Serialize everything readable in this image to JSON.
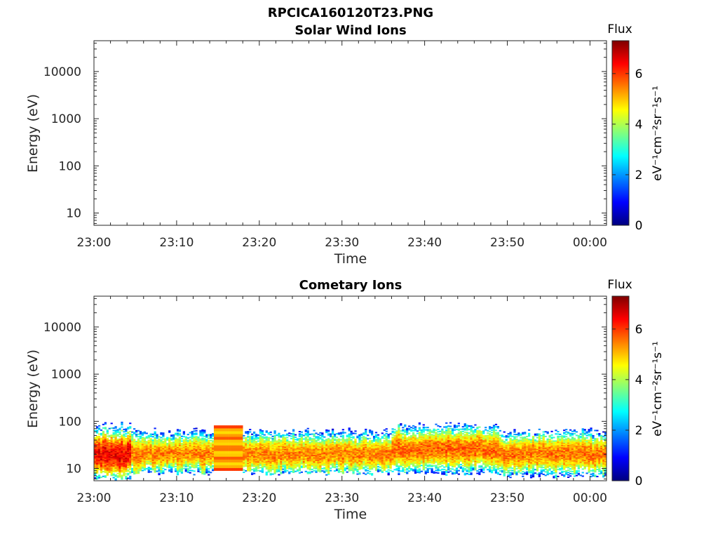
{
  "figure": {
    "title": "RPCICA160120T23.PNG"
  },
  "colormap": [
    "#00007f",
    "#0000ff",
    "#007fff",
    "#00ffff",
    "#7fff7f",
    "#ffff00",
    "#ff7f00",
    "#ff0000",
    "#7f0000"
  ],
  "chart_data": [
    {
      "type": "heatmap",
      "title": "Solar Wind Ions",
      "xlabel": "Time",
      "ylabel": "Energy (eV)",
      "xlim": [
        "23:00",
        "00:02"
      ],
      "ylim_eV": [
        5.5,
        45000
      ],
      "yscale": "log",
      "x_ticks": [
        "23:00",
        "23:10",
        "23:20",
        "23:30",
        "23:40",
        "23:50",
        "00:00"
      ],
      "y_ticks": [
        "10",
        "100",
        "1000",
        "10000"
      ],
      "colorbar": {
        "title": "Flux",
        "label": "eV⁻¹cm⁻²sr⁻¹s⁻¹",
        "range": [
          0,
          7.3
        ],
        "ticks": [
          "0",
          "2",
          "4",
          "6"
        ]
      },
      "data": []
    },
    {
      "type": "heatmap",
      "title": "Cometary Ions",
      "xlabel": "Time",
      "ylabel": "Energy (eV)",
      "xlim": [
        "23:00",
        "00:02"
      ],
      "ylim_eV": [
        5.5,
        45000
      ],
      "yscale": "log",
      "x_ticks": [
        "23:00",
        "23:10",
        "23:20",
        "23:30",
        "23:40",
        "23:50",
        "00:00"
      ],
      "y_ticks": [
        "10",
        "100",
        "1000",
        "10000"
      ],
      "colorbar": {
        "title": "Flux",
        "label": "eV⁻¹cm⁻²sr⁻¹s⁻¹",
        "range": [
          0,
          7.3
        ],
        "ticks": [
          "0",
          "2",
          "4",
          "6"
        ]
      },
      "data": [
        {
          "t_min": [
            0,
            4.5
          ],
          "peak_eV": 20,
          "flux": 7.0,
          "max_eV": 80,
          "min_eV": 6
        },
        {
          "t_min": [
            4.5,
            14.5
          ],
          "peak_eV": 20,
          "flux": 6.0,
          "max_eV": 60,
          "min_eV": 8
        },
        {
          "t_min": [
            14.5,
            18
          ],
          "peak_eV": 20,
          "flux": 6.0,
          "max_eV": 80,
          "min_eV": 9
        },
        {
          "t_min": [
            18,
            36
          ],
          "peak_eV": 20,
          "flux": 6.0,
          "max_eV": 60,
          "min_eV": 8
        },
        {
          "t_min": [
            36,
            49
          ],
          "peak_eV": 25,
          "flux": 6.2,
          "max_eV": 80,
          "min_eV": 8
        },
        {
          "t_min": [
            49,
            62.5
          ],
          "peak_eV": 20,
          "flux": 6.1,
          "max_eV": 60,
          "min_eV": 7
        }
      ]
    }
  ]
}
